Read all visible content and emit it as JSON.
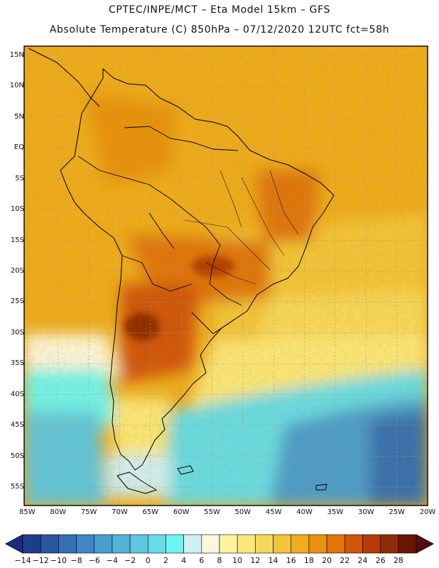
{
  "header": {
    "line1": "CPTEC/INPE/MCT –  Eta Model 15km – GFS",
    "line2": "Absolute Temperature (C) 850hPa – 07/12/2020 12UTC fct=58h"
  },
  "map": {
    "lat_labels": [
      "15N",
      "10N",
      "5N",
      "EQ",
      "5S",
      "10S",
      "15S",
      "20S",
      "25S",
      "30S",
      "35S",
      "40S",
      "45S",
      "50S",
      "55S"
    ],
    "lon_labels": [
      "85W",
      "80W",
      "75W",
      "70W",
      "65W",
      "60W",
      "55W",
      "50W",
      "45W",
      "40W",
      "35W",
      "30W",
      "25W",
      "20W"
    ],
    "lat_range": [
      -58,
      16.5
    ],
    "lon_range": [
      -85.5,
      -20
    ]
  },
  "colorbar": {
    "labels": [
      "-14",
      "-12",
      "-10",
      "-8",
      "-6",
      "-4",
      "-2",
      "0",
      "2",
      "4",
      "6",
      "8",
      "10",
      "12",
      "14",
      "16",
      "18",
      "20",
      "22",
      "24",
      "26",
      "28"
    ],
    "colors": [
      "#1e3c8c",
      "#2a559f",
      "#356fb4",
      "#3f86c4",
      "#4a9dcf",
      "#54b3d8",
      "#5ec7e0",
      "#66dde8",
      "#6ff4f0",
      "#cfeff6",
      "#fdf6dc",
      "#fdf3a0",
      "#fbe77a",
      "#f8d85c",
      "#f3c43a",
      "#eeac1e",
      "#e8920f",
      "#df740b",
      "#cf5508",
      "#b43c06",
      "#8f2a05",
      "#6a1504"
    ],
    "under_color": "#1e2a7a",
    "over_color": "#5a0a14"
  }
}
